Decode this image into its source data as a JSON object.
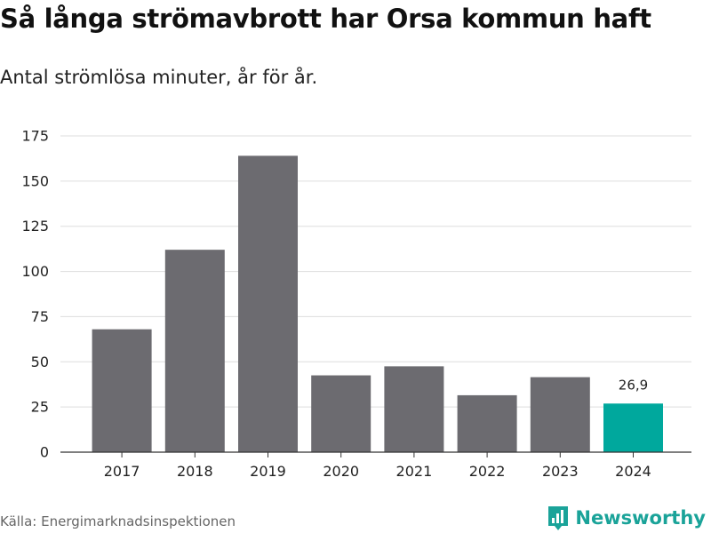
{
  "header": {
    "title": "Så långa strömavbrott har Orsa kommun haft",
    "subtitle": "Antal strömlösa minuter, år för år."
  },
  "footer": {
    "source": "Källa: Energimarknadsinspektionen",
    "brand": "Newsworthy"
  },
  "colors": {
    "bar": "#6c6b70",
    "highlight": "#00a89d",
    "grid": "#dddddd",
    "axis": "#333333",
    "brand": "#1aa399"
  },
  "chart_data": {
    "type": "bar",
    "title": "Så långa strömavbrott har Orsa kommun haft",
    "subtitle": "Antal strömlösa minuter, år för år.",
    "categories": [
      "2017",
      "2018",
      "2019",
      "2020",
      "2021",
      "2022",
      "2023",
      "2024"
    ],
    "values": [
      68,
      112,
      164,
      42.5,
      47.5,
      31.5,
      41.5,
      26.9
    ],
    "highlight_index": 7,
    "data_labels": [
      {
        "index": 7,
        "text": "26,9"
      }
    ],
    "yticks": [
      0,
      25,
      50,
      75,
      100,
      125,
      150,
      175
    ],
    "ylim": [
      0,
      175
    ],
    "xlabel": "",
    "ylabel": "",
    "grid": true,
    "legend": "none"
  }
}
